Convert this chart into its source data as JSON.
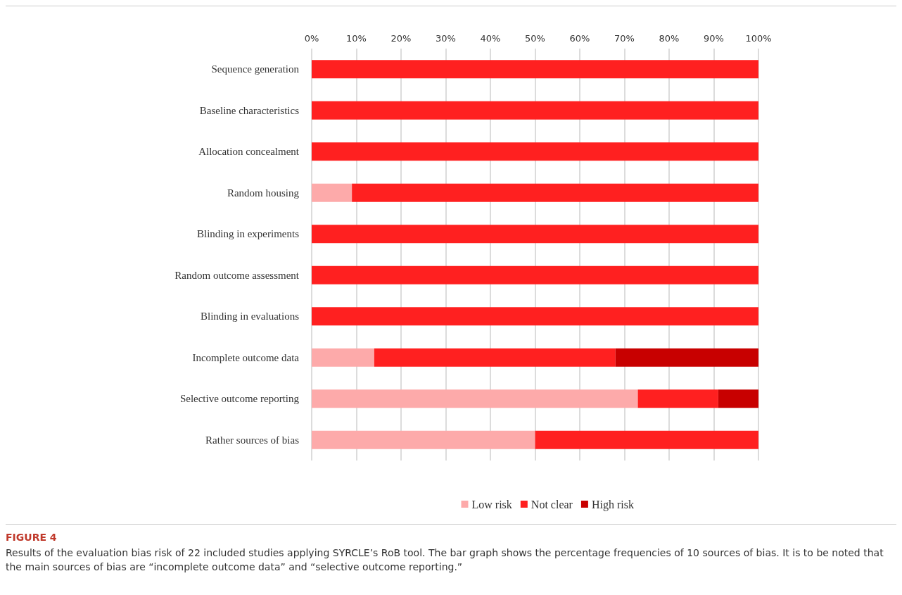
{
  "chart_data": {
    "type": "bar",
    "orientation": "horizontal",
    "stacked": true,
    "categories": [
      "Sequence generation",
      "Baseline characteristics",
      "Allocation concealment",
      "Random housing",
      "Blinding in experiments",
      "Random outcome assessment",
      "Blinding in evaluations",
      "Incomplete outcome data",
      "Selective outcome reporting",
      "Rather sources of bias"
    ],
    "series": [
      {
        "name": "Low risk",
        "color": "#fdaaaa",
        "values": [
          0,
          0,
          0,
          9,
          0,
          0,
          0,
          14,
          73,
          50
        ]
      },
      {
        "name": "Not clear",
        "color": "#ff2020",
        "values": [
          100,
          100,
          100,
          91,
          100,
          100,
          100,
          54,
          18,
          50
        ]
      },
      {
        "name": "High risk",
        "color": "#c80000",
        "values": [
          0,
          0,
          0,
          0,
          0,
          0,
          0,
          32,
          9,
          0
        ]
      }
    ],
    "xlim": [
      0,
      100
    ],
    "xticks": [
      {
        "value": 0,
        "label": "0%"
      },
      {
        "value": 10,
        "label": "10%"
      },
      {
        "value": 20,
        "label": "20%"
      },
      {
        "value": 30,
        "label": "30%"
      },
      {
        "value": 40,
        "label": "40%"
      },
      {
        "value": 50,
        "label": "50%"
      },
      {
        "value": 60,
        "label": "60%"
      },
      {
        "value": 70,
        "label": "70%"
      },
      {
        "value": 80,
        "label": "80%"
      },
      {
        "value": 90,
        "label": "90%"
      },
      {
        "value": 100,
        "label": "100%"
      }
    ],
    "grid": "x",
    "legend": "bottom",
    "annotations": [
      "FIGURE 4",
      "Results of the evaluation bias risk of 22 included studies applying SYRCLE’s RoB tool. The bar graph shows the percentage frequencies of 10 sources of bias. It is to be noted that the main sources of bias are “incomplete outcome data” and “selective outcome reporting.”"
    ]
  }
}
